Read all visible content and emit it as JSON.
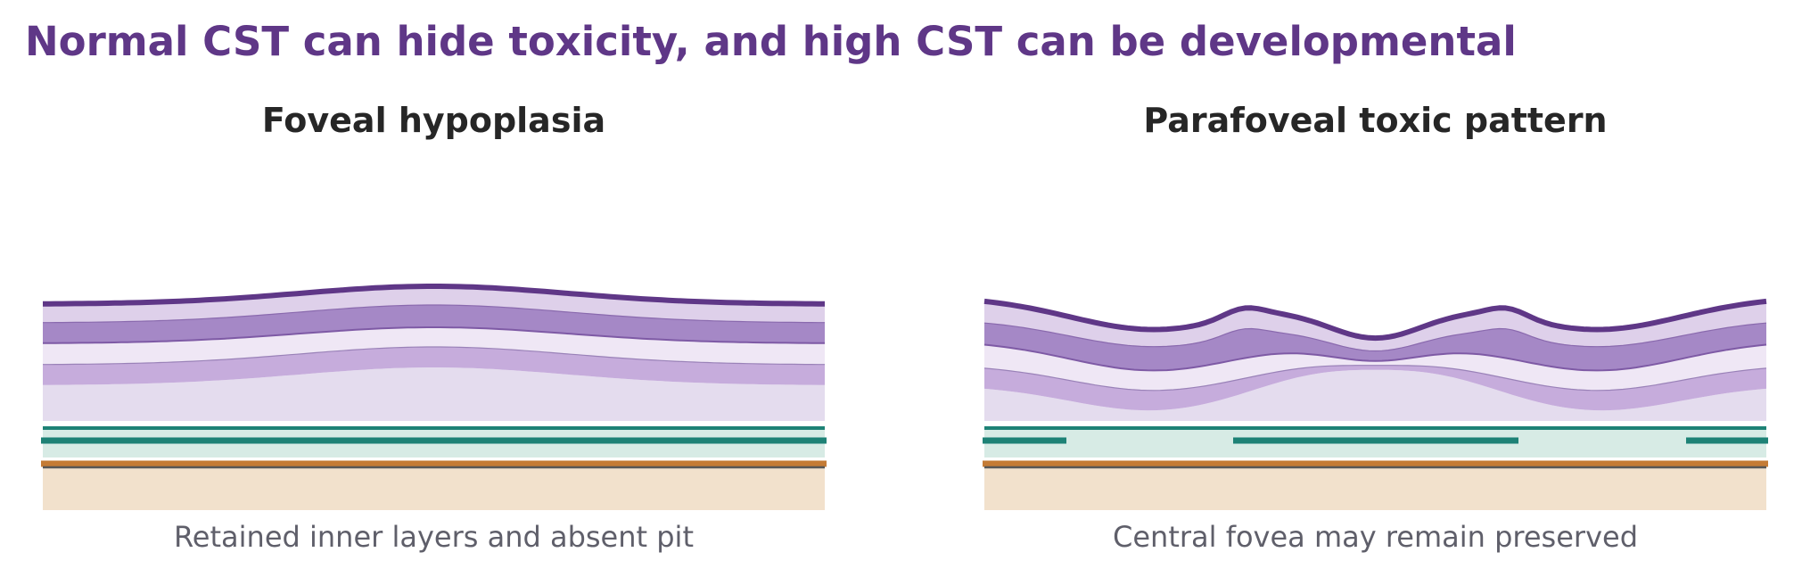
{
  "title": "Normal CST can hide toxicity, and high CST can be developmental",
  "colors": {
    "title": "#5f3787",
    "panel_title": "#262626",
    "caption": "#5f5f6a",
    "ilm_line": "#5f3787",
    "nfl_band": "#ded0ea",
    "gcl_band": "#a588c6",
    "ipl_band": "#efe7f5",
    "inl_band": "#c6acdc",
    "onl_band": "#e4dcee",
    "ellipsoid_line": "#1e8276",
    "ellipsoid_fill": "#d7ebe5",
    "rpe_line": "#c47b35",
    "bruch_line": "#575757",
    "choroid_fill": "#f2e1cc"
  },
  "panels": [
    {
      "title": "Foveal hypoplasia",
      "caption": "Retained inner layers and absent pit"
    },
    {
      "title": "Parafoveal toxic pattern",
      "caption": "Central fovea may remain preserved"
    }
  ]
}
